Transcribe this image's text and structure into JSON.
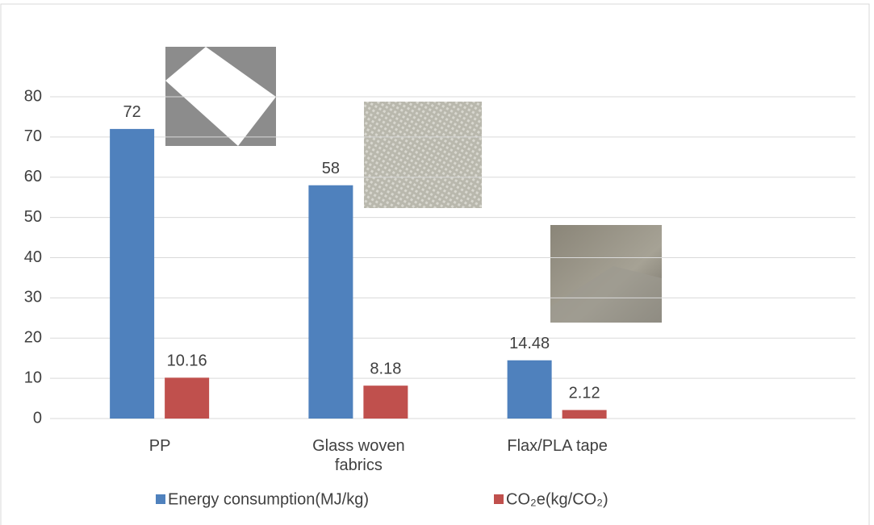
{
  "chart_data": {
    "type": "bar",
    "categories": [
      "PP",
      "Glass woven fabrics",
      "Flax/PLA tape",
      null
    ],
    "series": [
      {
        "name": "Energy consumption(MJ/kg)",
        "color": "#4f81bd",
        "values": [
          72,
          58,
          14.48,
          null
        ]
      },
      {
        "name": "CO₂e(kg/CO₂)",
        "color": "#c0504d",
        "values": [
          10.16,
          8.18,
          2.12,
          null
        ]
      }
    ],
    "ylim": [
      0,
      80
    ],
    "yticks": [
      0,
      10,
      20,
      30,
      40,
      50,
      60,
      70,
      80
    ],
    "grid": true,
    "legend": "bottom"
  }
}
